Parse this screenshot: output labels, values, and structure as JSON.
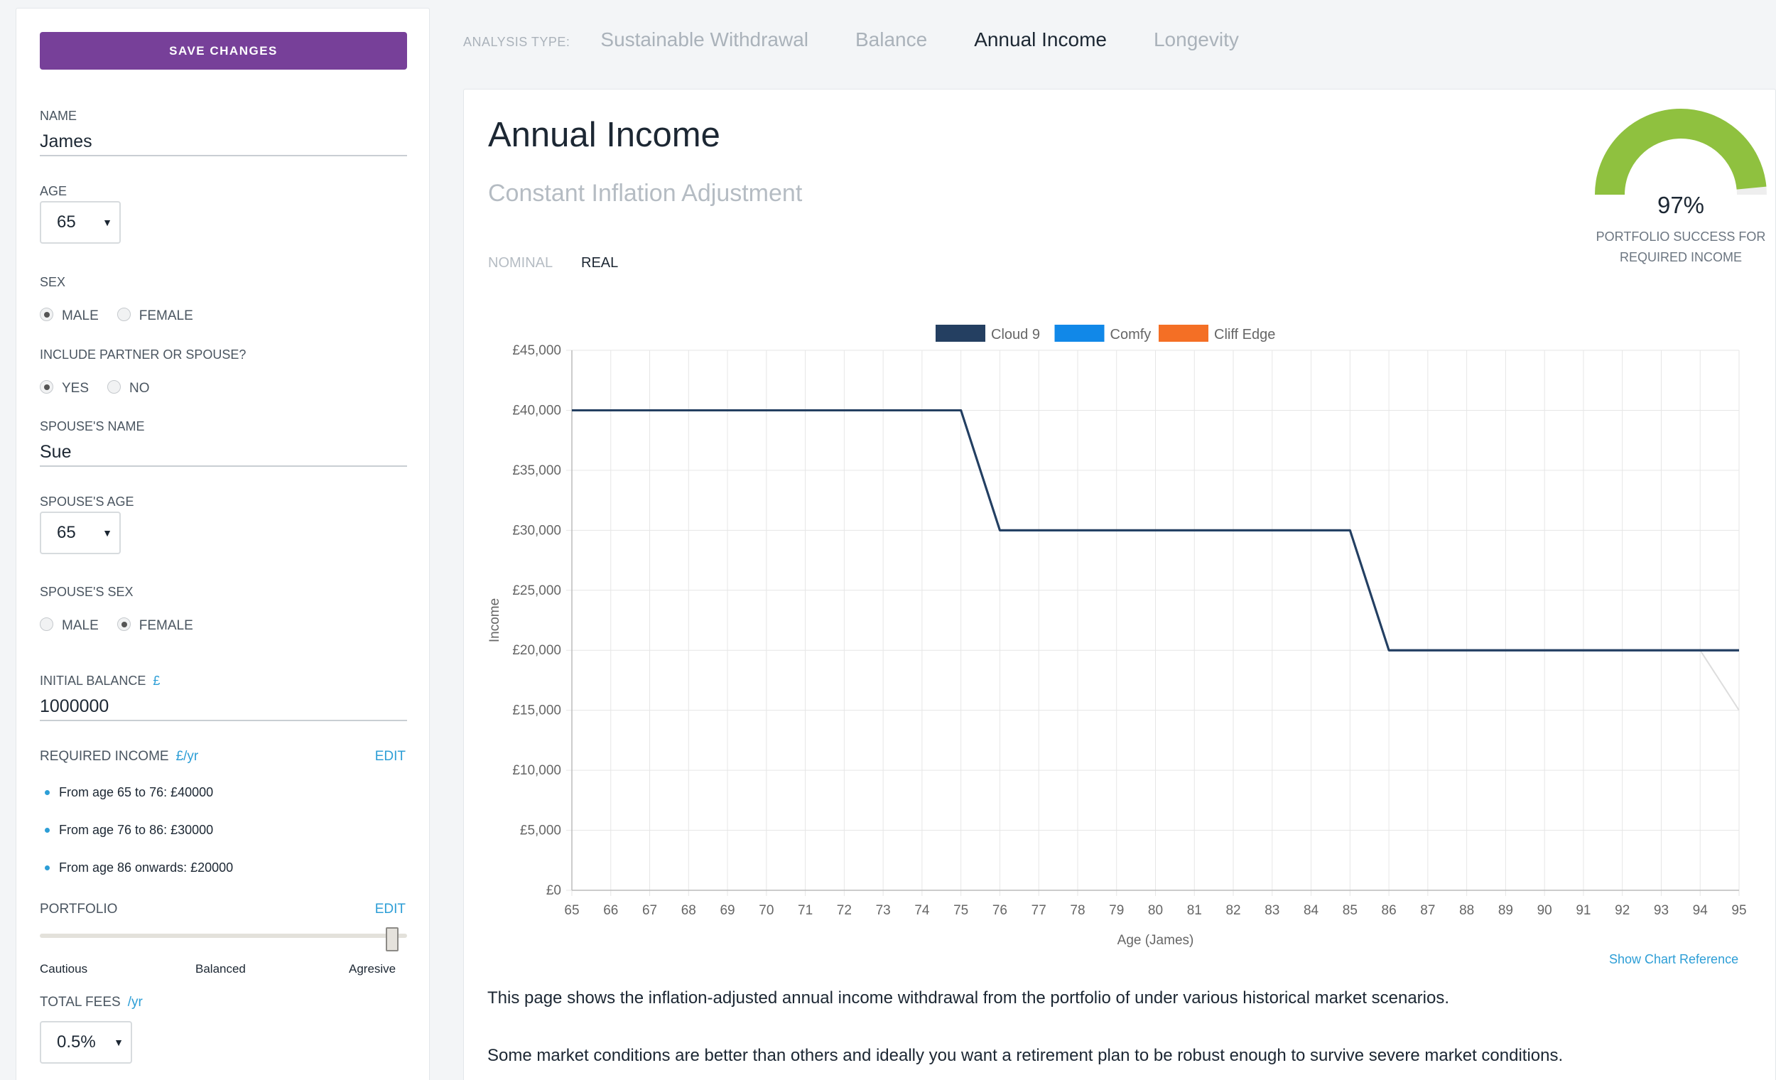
{
  "sidebar": {
    "save_label": "SAVE CHANGES",
    "name_label": "NAME",
    "name_value": "James",
    "age_label": "AGE",
    "age_value": "65",
    "sex_label": "SEX",
    "sex_options": [
      "MALE",
      "FEMALE"
    ],
    "sex_selected": "MALE",
    "partner_label": "INCLUDE PARTNER OR SPOUSE?",
    "partner_options": [
      "YES",
      "NO"
    ],
    "partner_selected": "YES",
    "spouse_name_label": "SPOUSE'S NAME",
    "spouse_name_value": "Sue",
    "spouse_age_label": "SPOUSE'S AGE",
    "spouse_age_value": "65",
    "spouse_sex_label": "SPOUSE'S SEX",
    "spouse_sex_options": [
      "MALE",
      "FEMALE"
    ],
    "spouse_sex_selected": "FEMALE",
    "balance_label": "INITIAL BALANCE",
    "balance_unit": "£",
    "balance_value": "1000000",
    "income_label": "REQUIRED INCOME",
    "income_unit": "£/yr",
    "income_edit": "EDIT",
    "income_items": [
      "From age 65 to 76: £40000",
      "From age 76 to 86: £30000",
      "From age 86 onwards: £20000"
    ],
    "portfolio_label": "PORTFOLIO",
    "portfolio_edit": "EDIT",
    "portfolio_marks": [
      "Cautious",
      "Balanced",
      "Agresive"
    ],
    "portfolio_level": 1.0,
    "fees_label": "TOTAL FEES",
    "fees_unit": "/yr",
    "fees_value": "0.5%"
  },
  "tabs": {
    "label": "ANALYSIS TYPE:",
    "items": [
      "Sustainable Withdrawal",
      "Balance",
      "Annual Income",
      "Longevity"
    ],
    "active": "Annual Income"
  },
  "main": {
    "title": "Annual Income",
    "subtitle": "Constant Inflation Adjustment",
    "toggle_nominal": "NOMINAL",
    "toggle_real": "REAL",
    "toggle_active": "REAL",
    "gauge_value": "97%",
    "gauge_fraction": 0.97,
    "gauge_caption_line1": "PORTFOLIO SUCCESS FOR",
    "gauge_caption_line2": "REQUIRED INCOME",
    "show_reference": "Show Chart Reference",
    "paragraph1": "This page shows the inflation-adjusted annual income withdrawal from the portfolio of under various historical market scenarios.",
    "paragraph2": "Some market conditions are better than others and ideally you want a retirement plan to be robust enough to survive severe market conditions."
  },
  "colors": {
    "accent_purple": "#774099",
    "link_blue": "#2d9ed6",
    "gauge_green": "#8fc13f",
    "series_cloud9": "#243f61",
    "series_comfy": "#1188e8",
    "series_cliff_edge": "#f46f25"
  },
  "chart_data": {
    "type": "line",
    "xlabel": "Age (James)",
    "ylabel": "Income",
    "x": [
      65,
      66,
      67,
      68,
      69,
      70,
      71,
      72,
      73,
      74,
      75,
      76,
      77,
      78,
      79,
      80,
      81,
      82,
      83,
      84,
      85,
      86,
      87,
      88,
      89,
      90,
      91,
      92,
      93,
      94,
      95
    ],
    "xlim": [
      65,
      95
    ],
    "ylim": [
      0,
      45000
    ],
    "yticks": [
      0,
      5000,
      10000,
      15000,
      20000,
      25000,
      30000,
      35000,
      40000,
      45000
    ],
    "ytick_labels": [
      "£0",
      "£5,000",
      "£10,000",
      "£15,000",
      "£20,000",
      "£25,000",
      "£30,000",
      "£35,000",
      "£40,000",
      "£45,000"
    ],
    "grid": true,
    "legend_position": "top-center",
    "series": [
      {
        "name": "Cloud 9",
        "color": "#243f61",
        "values": [
          40000,
          40000,
          40000,
          40000,
          40000,
          40000,
          40000,
          40000,
          40000,
          40000,
          40000,
          30000,
          30000,
          30000,
          30000,
          30000,
          30000,
          30000,
          30000,
          30000,
          30000,
          20000,
          20000,
          20000,
          20000,
          20000,
          20000,
          20000,
          20000,
          20000,
          20000
        ]
      },
      {
        "name": "Comfy",
        "color": "#1188e8",
        "values": [
          40000,
          40000,
          40000,
          40000,
          40000,
          40000,
          40000,
          40000,
          40000,
          40000,
          40000,
          30000,
          30000,
          30000,
          30000,
          30000,
          30000,
          30000,
          30000,
          30000,
          30000,
          20000,
          20000,
          20000,
          20000,
          20000,
          20000,
          20000,
          20000,
          20000,
          20000
        ]
      },
      {
        "name": "Cliff Edge",
        "color": "#f46f25",
        "values": [
          40000,
          40000,
          40000,
          40000,
          40000,
          40000,
          40000,
          40000,
          40000,
          40000,
          40000,
          30000,
          30000,
          30000,
          30000,
          30000,
          30000,
          30000,
          30000,
          30000,
          30000,
          20000,
          20000,
          20000,
          20000,
          20000,
          20000,
          20000,
          20000,
          20000,
          20000
        ]
      }
    ],
    "faint_line": {
      "color": "#dddddd",
      "x": [
        94,
        95
      ],
      "values": [
        20000,
        15000
      ]
    }
  }
}
